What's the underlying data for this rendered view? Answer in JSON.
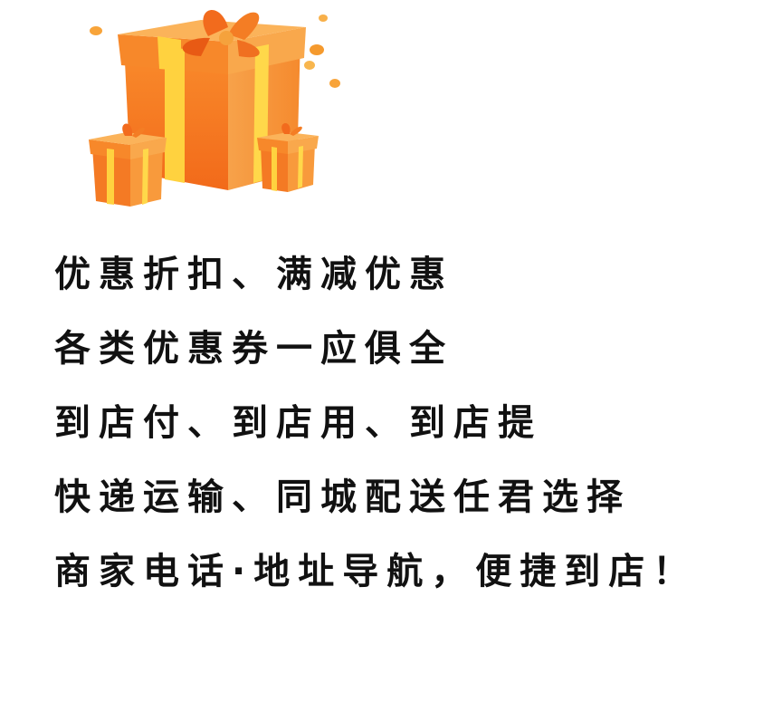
{
  "colors": {
    "text": "#111111",
    "box_orange": "#f47a24",
    "box_light": "#f89a3c",
    "ribbon_yellow": "#ffd23f",
    "bow_orange": "#f26b1d"
  },
  "illustration": {
    "icon": "gift-boxes-icon"
  },
  "features": [
    "优惠折扣、满减优惠",
    "各类优惠券一应俱全",
    "到店付、到店用、到店提",
    "快递运输、同城配送任君选择",
    "商家电话·地址导航，便捷到店！"
  ]
}
